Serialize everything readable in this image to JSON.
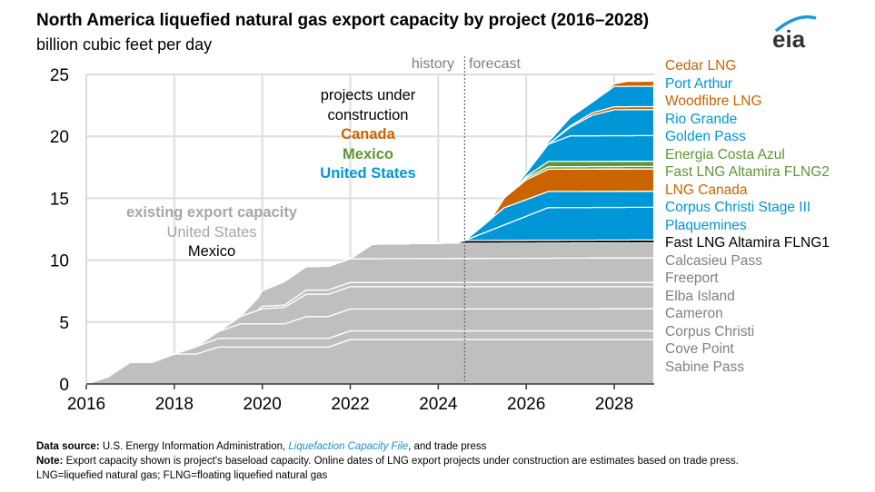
{
  "header": {
    "title": "North America liquefied natural gas export capacity by project (2016–2028)",
    "subtitle": "billion cubic feet per day",
    "logo_text": "eia"
  },
  "annotations": {
    "history": "history",
    "forecast": "forecast",
    "construction_line1": "projects under",
    "construction_line2": "construction",
    "construction_canada": "Canada",
    "construction_mexico": "Mexico",
    "construction_us": "United States",
    "existing_title": "existing export capacity",
    "existing_us": "United States",
    "existing_mexico": "Mexico"
  },
  "footer": {
    "source_label": "Data source:",
    "source_text": " U.S. Energy Information Administration, ",
    "source_link": "Liquefaction Capacity File",
    "source_tail": ", and trade press",
    "note_label": "Note:",
    "note_text": " Export capacity shown is project's baseload capacity. Online dates of LNG export projects under construction are estimates based on trade press.",
    "abbrev": "LNG=liquefied natural gas; FLNG=floating liquefied natural gas"
  },
  "colors": {
    "existing": "#bfbfbf",
    "us": "#0096d7",
    "canada": "#c96400",
    "mexico": "#5d9732",
    "mexico_existing": "#000000",
    "grid": "#dddddd"
  },
  "chart_data": {
    "type": "area",
    "title": "North America liquefied natural gas export capacity by project (2016–2028)",
    "ylabel": "billion cubic feet per day",
    "xlabel": "",
    "xlim": [
      2016,
      2028.9
    ],
    "ylim": [
      0,
      25
    ],
    "xticks": [
      "2016",
      "2018",
      "2020",
      "2022",
      "2024",
      "2026",
      "2028"
    ],
    "yticks": [
      "0",
      "5",
      "10",
      "15",
      "20",
      "25"
    ],
    "history_forecast_divider": 2024.6,
    "grid": true,
    "stacked": true,
    "legend": "right",
    "series": [
      {
        "name": "Sabine Pass",
        "group": "existing",
        "points": [
          [
            2016,
            0
          ],
          [
            2016.5,
            0.59
          ],
          [
            2017,
            1.76
          ],
          [
            2017.5,
            1.76
          ],
          [
            2018,
            2.42
          ],
          [
            2018.5,
            2.42
          ],
          [
            2019,
            2.98
          ],
          [
            2021.5,
            2.98
          ],
          [
            2022,
            3.59
          ],
          [
            2029,
            3.59
          ]
        ]
      },
      {
        "name": "Cove Point",
        "group": "existing",
        "points": [
          [
            2018,
            0
          ],
          [
            2018.5,
            0.6
          ],
          [
            2019,
            0.7
          ],
          [
            2029,
            0.7
          ]
        ]
      },
      {
        "name": "Corpus Christi",
        "group": "existing",
        "points": [
          [
            2018.5,
            0
          ],
          [
            2019,
            0.56
          ],
          [
            2019.5,
            1.17
          ],
          [
            2020.5,
            1.17
          ],
          [
            2021,
            1.76
          ],
          [
            2029,
            1.78
          ]
        ]
      },
      {
        "name": "Cameron",
        "group": "existing",
        "points": [
          [
            2019,
            0
          ],
          [
            2019.5,
            0.6
          ],
          [
            2020,
            1.22
          ],
          [
            2020.5,
            1.34
          ],
          [
            2021,
            1.81
          ],
          [
            2029,
            1.78
          ]
        ]
      },
      {
        "name": "Elba Island",
        "group": "existing",
        "points": [
          [
            2019.9,
            0
          ],
          [
            2020,
            0.2
          ],
          [
            2020.5,
            0.18
          ],
          [
            2021,
            0.34
          ],
          [
            2029,
            0.35
          ]
        ]
      },
      {
        "name": "Freeport",
        "group": "existing",
        "points": [
          [
            2019.5,
            0
          ],
          [
            2020,
            1.27
          ],
          [
            2020.5,
            1.9
          ],
          [
            2029,
            1.98
          ]
        ]
      },
      {
        "name": "Calcasieu Pass",
        "group": "existing",
        "points": [
          [
            2022,
            0
          ],
          [
            2022.5,
            1.17
          ],
          [
            2024.5,
            1.25
          ],
          [
            2029,
            1.25
          ]
        ]
      },
      {
        "name": "Fast LNG Altamira FLNG1",
        "group": "mexico_existing",
        "points": [
          [
            2024.4,
            0
          ],
          [
            2024.6,
            0.2
          ],
          [
            2029,
            0.2
          ]
        ]
      },
      {
        "name": "Plaquemines",
        "group": "us",
        "points": [
          [
            2024.6,
            0
          ],
          [
            2026.5,
            2.64
          ],
          [
            2029,
            2.64
          ]
        ]
      },
      {
        "name": "Corpus Christi Stage III",
        "group": "us",
        "points": [
          [
            2024.6,
            0
          ],
          [
            2025,
            0.6
          ],
          [
            2025.5,
            1.39
          ],
          [
            2026.5,
            1.3
          ],
          [
            2029,
            1.3
          ]
        ]
      },
      {
        "name": "LNG Canada",
        "group": "canada",
        "points": [
          [
            2025.2,
            0
          ],
          [
            2025.5,
            0.8
          ],
          [
            2026,
            1.6
          ],
          [
            2026.5,
            1.8
          ],
          [
            2029,
            1.8
          ]
        ]
      },
      {
        "name": "Fast LNG Altamira FLNG2",
        "group": "mexico",
        "points": [
          [
            2025.5,
            0
          ],
          [
            2026,
            0.15
          ],
          [
            2026.5,
            0.2
          ],
          [
            2029,
            0.2
          ]
        ]
      },
      {
        "name": "Energia Costa Azul",
        "group": "mexico",
        "points": [
          [
            2025.8,
            0
          ],
          [
            2026.5,
            0.42
          ],
          [
            2029,
            0.42
          ]
        ]
      },
      {
        "name": "Golden Pass",
        "group": "us",
        "points": [
          [
            2025.6,
            0
          ],
          [
            2026,
            0.3
          ],
          [
            2026.5,
            1.4
          ],
          [
            2027,
            2.07
          ],
          [
            2029,
            2.07
          ]
        ]
      },
      {
        "name": "Rio Grande",
        "group": "us",
        "points": [
          [
            2026.5,
            0
          ],
          [
            2027,
            0.7
          ],
          [
            2027.5,
            1.66
          ],
          [
            2028,
            2.1
          ],
          [
            2029,
            2.1
          ]
        ]
      },
      {
        "name": "Woodfibre LNG",
        "group": "canada",
        "points": [
          [
            2026.6,
            0
          ],
          [
            2027,
            0.1
          ],
          [
            2027.5,
            0.2
          ],
          [
            2028,
            0.24
          ],
          [
            2029,
            0.24
          ]
        ]
      },
      {
        "name": "Port Arthur",
        "group": "us",
        "points": [
          [
            2026.3,
            0
          ],
          [
            2027,
            0.7
          ],
          [
            2027.5,
            0.86
          ],
          [
            2028,
            1.65
          ],
          [
            2029,
            1.65
          ]
        ]
      },
      {
        "name": "Cedar LNG",
        "group": "canada",
        "points": [
          [
            2027.7,
            0
          ],
          [
            2028.3,
            0.4
          ],
          [
            2029,
            0.4
          ]
        ]
      }
    ]
  }
}
